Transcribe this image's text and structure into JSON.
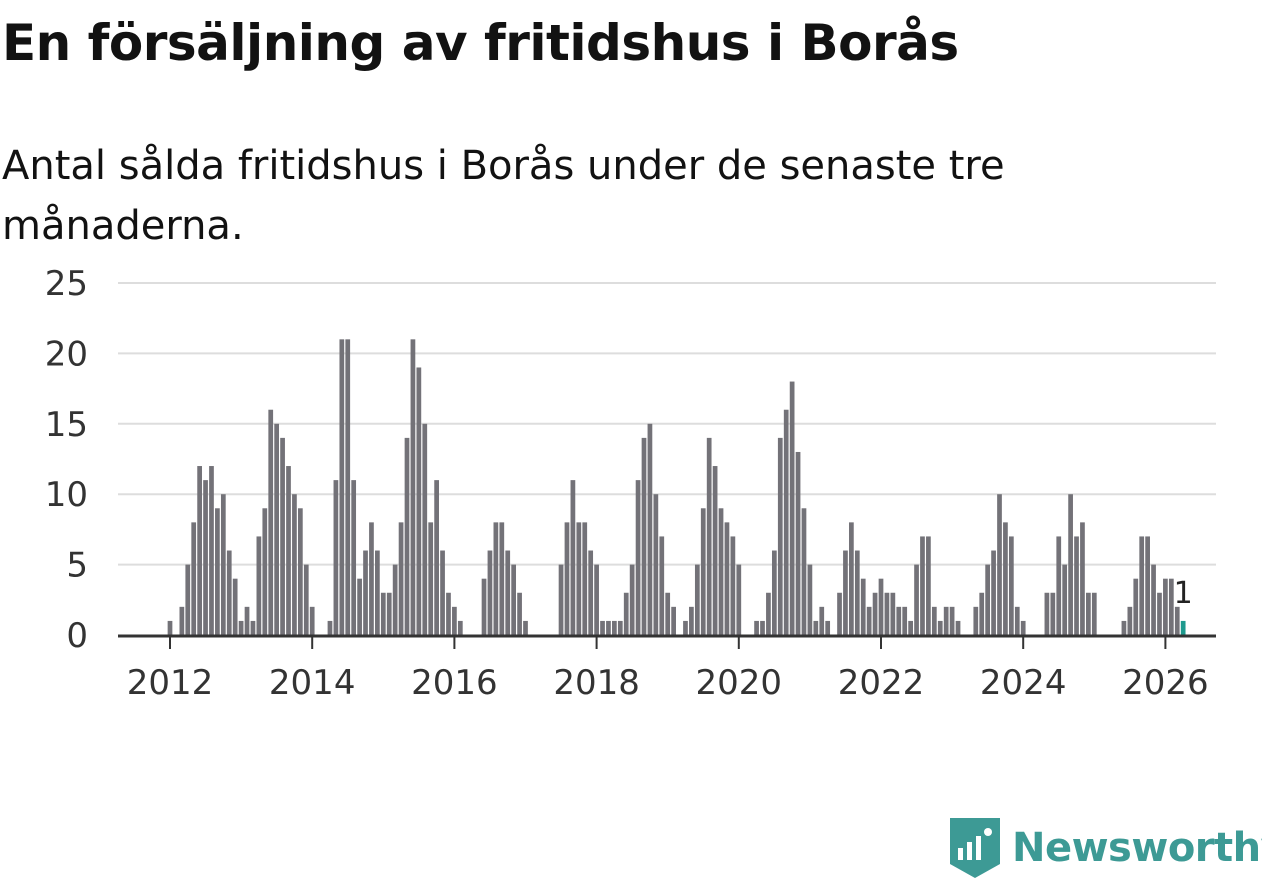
{
  "title": "En försäljning av fritidshus i Borås",
  "subtitle": "Antal sålda fritidshus i Borås under de senaste tre månaderna.",
  "brand": {
    "name": "Newsworthy",
    "icon": "newsworthy-logo-icon",
    "color": "#3d9a95"
  },
  "colors": {
    "bar": "#737278",
    "highlight": "#1e9a8e",
    "grid": "#dddddd",
    "axis": "#333333"
  },
  "chart_data": {
    "type": "bar",
    "title": "En försäljning av fritidshus i Borås",
    "xlabel": "",
    "ylabel": "",
    "ylim": [
      0,
      25
    ],
    "y_ticks": [
      "0",
      "5",
      "10",
      "15",
      "20",
      "25"
    ],
    "x_ticks": [
      "2012",
      "2014",
      "2016",
      "2018",
      "2020",
      "2022",
      "2024",
      "2026"
    ],
    "x_start": "2011-09",
    "x_step": "month",
    "annotation": {
      "label": "1",
      "month": "2026-01",
      "value": 1
    },
    "values": [
      0,
      0,
      0,
      0,
      1,
      0,
      2,
      5,
      8,
      12,
      11,
      12,
      9,
      10,
      6,
      4,
      1,
      2,
      1,
      7,
      9,
      16,
      15,
      14,
      12,
      10,
      9,
      5,
      2,
      0,
      0,
      1,
      11,
      21,
      21,
      11,
      4,
      6,
      8,
      6,
      3,
      3,
      5,
      8,
      14,
      21,
      19,
      15,
      8,
      11,
      6,
      3,
      2,
      1,
      0,
      0,
      0,
      4,
      6,
      8,
      8,
      6,
      5,
      3,
      1,
      0,
      0,
      0,
      0,
      0,
      5,
      8,
      11,
      8,
      8,
      6,
      5,
      1,
      1,
      1,
      1,
      3,
      5,
      11,
      14,
      15,
      10,
      7,
      3,
      2,
      0,
      1,
      2,
      5,
      9,
      14,
      12,
      9,
      8,
      7,
      5,
      0,
      0,
      1,
      1,
      3,
      6,
      14,
      16,
      18,
      13,
      9,
      5,
      1,
      2,
      1,
      0,
      3,
      6,
      8,
      6,
      4,
      2,
      3,
      4,
      3,
      3,
      2,
      2,
      1,
      5,
      7,
      7,
      2,
      1,
      2,
      2,
      1,
      0,
      0,
      2,
      3,
      5,
      6,
      10,
      8,
      7,
      2,
      1,
      0,
      0,
      0,
      3,
      3,
      7,
      5,
      10,
      7,
      8,
      3,
      3,
      0,
      0,
      0,
      0,
      1,
      2,
      4,
      7,
      7,
      5,
      3,
      4,
      4,
      2,
      1
    ]
  }
}
